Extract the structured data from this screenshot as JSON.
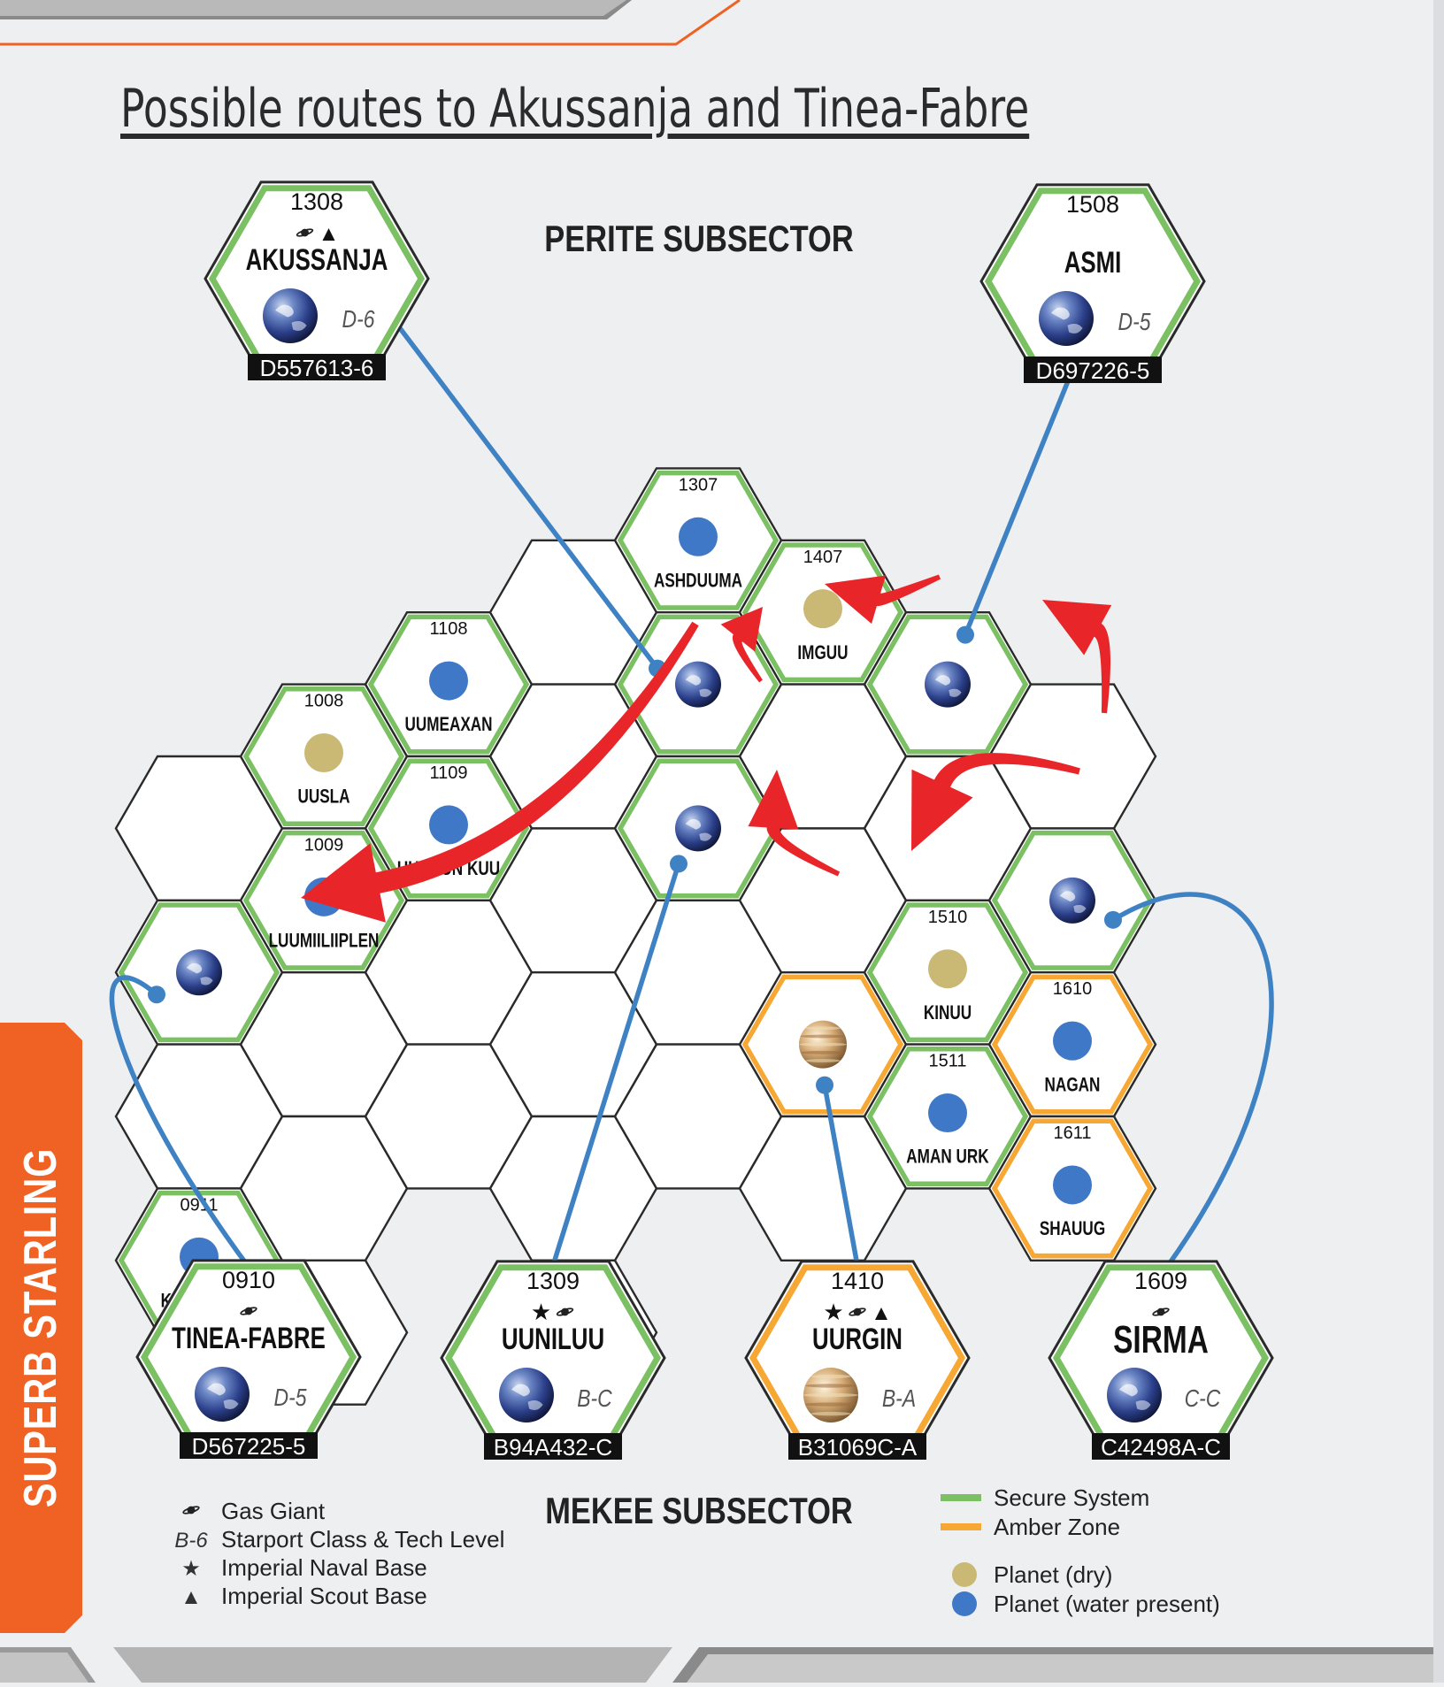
{
  "title": "Possible routes to Akussanja and Tinea-Fabre",
  "side_tab": "SUPERB STARLING",
  "subsectors": {
    "top": "PERITE SUBSECTOR",
    "bottom": "MEKEE SUBSECTOR"
  },
  "colors": {
    "secure": "#7cc064",
    "amber": "#f7a733",
    "route_line": "#3f82c4",
    "jump_arrow": "#e8262a",
    "side_tab": "#ef6223",
    "dry_planet": "#c9b975",
    "water_planet": "#3f78c6"
  },
  "map_hexes": [
    {
      "col": 9,
      "row": 5,
      "zone": "none"
    },
    {
      "col": 9,
      "row": 6,
      "zone": "secure",
      "world": "earth"
    },
    {
      "col": 9,
      "row": 7,
      "zone": "none"
    },
    {
      "col": 9,
      "row": 8,
      "hex": "0911",
      "name": "KIKED LIG",
      "zone": "secure",
      "world": "water"
    },
    {
      "col": 10,
      "row": 4,
      "hex": "1008",
      "name": "UUSLA",
      "zone": "secure",
      "world": "dry"
    },
    {
      "col": 10,
      "row": 5,
      "hex": "1009",
      "name": "LUUMIILIIPLEN",
      "zone": "secure",
      "world": "water"
    },
    {
      "col": 10,
      "row": 6,
      "zone": "none"
    },
    {
      "col": 10,
      "row": 7,
      "zone": "none"
    },
    {
      "col": 10,
      "row": 8,
      "zone": "none"
    },
    {
      "col": 11,
      "row": 4,
      "hex": "1108",
      "name": "UUMEAXAN",
      "zone": "secure",
      "world": "water"
    },
    {
      "col": 11,
      "row": 5,
      "hex": "1109",
      "name": "UURUUN KUU",
      "zone": "secure",
      "world": "water"
    },
    {
      "col": 11,
      "row": 6,
      "zone": "none"
    },
    {
      "col": 11,
      "row": 7,
      "zone": "none"
    },
    {
      "col": 12,
      "row": 3,
      "zone": "none"
    },
    {
      "col": 12,
      "row": 4,
      "zone": "none"
    },
    {
      "col": 12,
      "row": 5,
      "zone": "none"
    },
    {
      "col": 12,
      "row": 6,
      "zone": "none"
    },
    {
      "col": 12,
      "row": 7,
      "zone": "none"
    },
    {
      "col": 12,
      "row": 8,
      "zone": "none"
    },
    {
      "col": 13,
      "row": 3,
      "hex": "1307",
      "name": "ASHDUUMA",
      "zone": "secure",
      "world": "water"
    },
    {
      "col": 13,
      "row": 4,
      "zone": "secure",
      "world": "earth"
    },
    {
      "col": 13,
      "row": 5,
      "zone": "secure",
      "world": "earth"
    },
    {
      "col": 13,
      "row": 6,
      "zone": "none"
    },
    {
      "col": 13,
      "row": 7,
      "zone": "none"
    },
    {
      "col": 14,
      "row": 3,
      "hex": "1407",
      "name": "IMGUU",
      "zone": "secure",
      "world": "dry"
    },
    {
      "col": 14,
      "row": 4,
      "zone": "none"
    },
    {
      "col": 14,
      "row": 5,
      "zone": "none"
    },
    {
      "col": 14,
      "row": 6,
      "zone": "amber",
      "world": "gas"
    },
    {
      "col": 14,
      "row": 7,
      "zone": "none"
    },
    {
      "col": 15,
      "row": 4,
      "zone": "secure",
      "world": "earth"
    },
    {
      "col": 15,
      "row": 5,
      "zone": "none"
    },
    {
      "col": 15,
      "row": 6,
      "hex": "1510",
      "name": "KINUU",
      "zone": "secure",
      "world": "dry"
    },
    {
      "col": 15,
      "row": 7,
      "hex": "1511",
      "name": "AMAN URK",
      "zone": "secure",
      "world": "water"
    },
    {
      "col": 16,
      "row": 4,
      "zone": "none"
    },
    {
      "col": 16,
      "row": 5,
      "zone": "secure",
      "world": "earth"
    },
    {
      "col": 16,
      "row": 6,
      "hex": "1610",
      "name": "NAGAN",
      "zone": "amber",
      "world": "water"
    },
    {
      "col": 16,
      "row": 7,
      "hex": "1611",
      "name": "SHAUUG",
      "zone": "amber",
      "world": "water"
    }
  ],
  "detail_hexes": [
    {
      "id": "akussanja",
      "hex": "1308",
      "name": "AKUSSANJA",
      "bases": "gas-giant scout",
      "class": "D-6",
      "uwp": "D557613-6",
      "zone": "secure",
      "world": "earth",
      "link_to": [
        13,
        4
      ]
    },
    {
      "id": "asmi",
      "hex": "1508",
      "name": "ASMI",
      "bases": "",
      "class": "D-5",
      "uwp": "D697226-5",
      "zone": "secure",
      "world": "earth",
      "link_to": [
        15,
        4
      ]
    },
    {
      "id": "tinea-fabre",
      "hex": "0910",
      "name": "TINEA-FABRE",
      "bases": "gas-giant",
      "class": "D-5",
      "uwp": "D567225-5",
      "zone": "secure",
      "world": "earth",
      "link_to": [
        9,
        6
      ]
    },
    {
      "id": "uuniluu",
      "hex": "1309",
      "name": "UUNILUU",
      "bases": "naval gas-giant",
      "class": "B-C",
      "uwp": "B94A432-C",
      "zone": "secure",
      "world": "earth",
      "link_to": [
        13,
        5
      ]
    },
    {
      "id": "uurgin",
      "hex": "1410",
      "name": "UURGIN",
      "bases": "naval gas-giant scout",
      "class": "B-A",
      "uwp": "B31069C-A",
      "zone": "amber",
      "world": "gas",
      "link_to": [
        14,
        6
      ]
    },
    {
      "id": "sirma",
      "hex": "1609",
      "name": "SIRMA",
      "bases": "gas-giant",
      "class": "C-C",
      "uwp": "C42498A-C",
      "zone": "secure",
      "world": "earth",
      "link_to": [
        16,
        5
      ]
    }
  ],
  "jumps": [
    {
      "from": [
        15,
        4
      ],
      "to": [
        13,
        4
      ]
    },
    {
      "from": [
        16,
        5
      ],
      "to": [
        15,
        4
      ]
    },
    {
      "from": [
        16,
        5
      ],
      "to": [
        14,
        6
      ]
    },
    {
      "from": [
        14,
        6
      ],
      "to": [
        13,
        5
      ]
    },
    {
      "from": [
        13,
        5
      ],
      "to": [
        13,
        4
      ]
    },
    {
      "from": [
        13,
        4
      ],
      "to": [
        9,
        6
      ]
    }
  ],
  "legend_left": [
    {
      "symbol": "gas-giant",
      "label": "Gas Giant"
    },
    {
      "symbol": "B-6",
      "label": "Starport Class & Tech Level"
    },
    {
      "symbol": "★",
      "label": "Imperial Naval Base"
    },
    {
      "symbol": "▲",
      "label": "Imperial Scout Base"
    }
  ],
  "legend_right": [
    {
      "symbol": "secure",
      "label": "Secure System"
    },
    {
      "symbol": "amber",
      "label": "Amber Zone"
    },
    {
      "symbol": "dry",
      "label": "Planet (dry)"
    },
    {
      "symbol": "water",
      "label": "Planet (water present)"
    }
  ]
}
